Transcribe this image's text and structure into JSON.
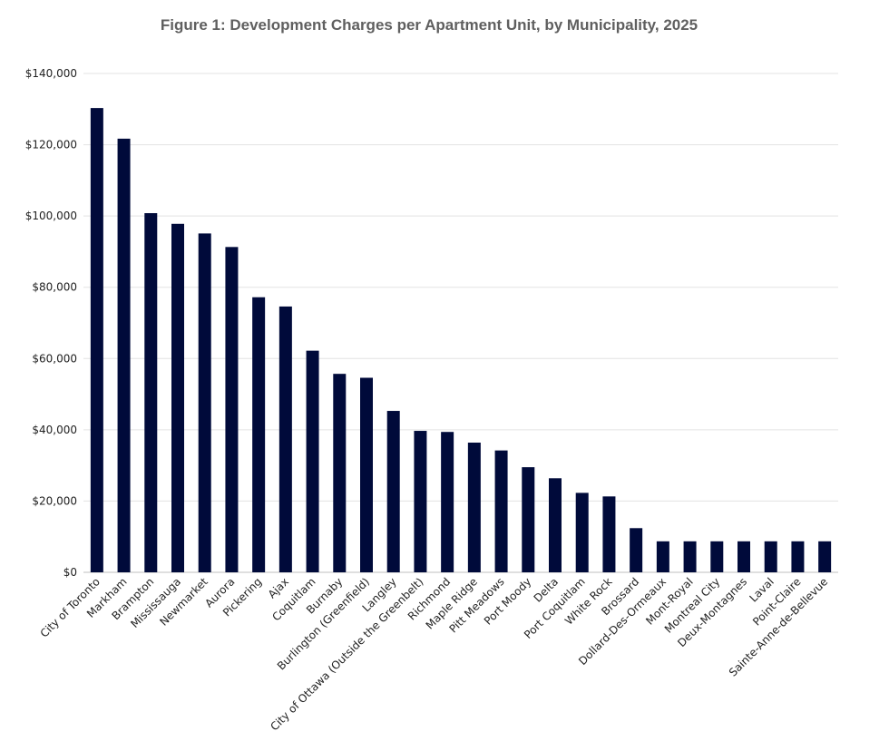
{
  "chart_data": {
    "type": "bar",
    "title": "Figure 1: Development Charges per Apartment Unit, by Municipality, 2025",
    "xlabel": "",
    "ylabel": "",
    "ylim": [
      0,
      140000
    ],
    "yticks": [
      0,
      20000,
      40000,
      60000,
      80000,
      100000,
      120000,
      140000
    ],
    "ytick_labels": [
      "$0",
      "$20,000",
      "$40,000",
      "$60,000",
      "$80,000",
      "$100,000",
      "$120,000",
      "$140,000"
    ],
    "grid": true,
    "bar_color": "#000a3a",
    "categories": [
      "City of Toronto",
      "Markham",
      "Brampton",
      "Mississauga",
      "Newmarket",
      "Aurora",
      "Pickering",
      "Ajax",
      "Coquitlam",
      "Burnaby",
      "Burlington (Greenfield)",
      "Langley",
      "City of Ottawa (Outside the Greenbelt)",
      "Richmond",
      "Maple Ridge",
      "Pitt Meadows",
      "Port Moody",
      "Delta",
      "Port Coquitlam",
      "White Rock",
      "Brossard",
      "Dollard-Des-Ormeaux",
      "Mont-Royal",
      "Montreal City",
      "Deux-Montagnes",
      "Laval",
      "Point-Claire",
      "Sainte-Anne-de-Bellevue"
    ],
    "values": [
      130300,
      121700,
      100800,
      97800,
      95100,
      91300,
      77200,
      74600,
      62200,
      55700,
      54600,
      45300,
      39700,
      39400,
      36400,
      34200,
      29500,
      26400,
      22300,
      21300,
      12400,
      8700,
      8700,
      8700,
      8700,
      8700,
      8700,
      8700
    ]
  }
}
